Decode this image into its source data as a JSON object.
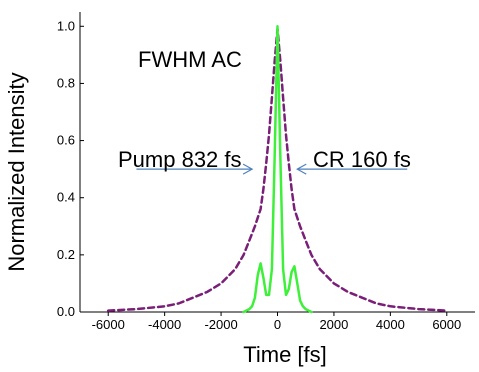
{
  "chart_data": {
    "type": "line",
    "title": "",
    "xlabel": "Time [fs]",
    "ylabel": "Normalized Intensity",
    "xlim": [
      -7000,
      7000
    ],
    "ylim": [
      0,
      1.05
    ],
    "xticks": [
      -6000,
      -4000,
      -2000,
      0,
      2000,
      4000,
      6000
    ],
    "xtick_labels": [
      "-6000",
      "-4000",
      "-2000",
      "0",
      "2000",
      "4000",
      "6000"
    ],
    "yticks": [
      0.0,
      0.2,
      0.4,
      0.6,
      0.8,
      1.0
    ],
    "ytick_labels": [
      "0.0",
      "0.2",
      "0.4",
      "0.6",
      "0.8",
      "1.0"
    ],
    "grid": false,
    "legend": "none",
    "annotations": {
      "heading": "FWHM AC",
      "left": "Pump 832 fs",
      "right": "CR 160 fs"
    },
    "series": [
      {
        "color": "#7a1f78",
        "dash": "dashed",
        "x": [
          -6000,
          -5000,
          -4000,
          -3500,
          -3000,
          -2500,
          -2000,
          -1500,
          -1200,
          -1000,
          -800,
          -600,
          -500,
          -400,
          -300,
          -200,
          -100,
          0,
          100,
          200,
          300,
          400,
          500,
          600,
          800,
          1000,
          1200,
          1500,
          2000,
          2500,
          3000,
          3500,
          4000,
          5000,
          6000
        ],
        "y": [
          0.005,
          0.01,
          0.02,
          0.03,
          0.05,
          0.07,
          0.1,
          0.15,
          0.2,
          0.25,
          0.3,
          0.36,
          0.43,
          0.52,
          0.62,
          0.75,
          0.88,
          0.99,
          0.88,
          0.75,
          0.62,
          0.52,
          0.43,
          0.36,
          0.3,
          0.25,
          0.2,
          0.15,
          0.1,
          0.07,
          0.05,
          0.03,
          0.02,
          0.01,
          0.005
        ]
      },
      {
        "color": "#3ef03a",
        "dash": "solid",
        "x": [
          -1200,
          -1000,
          -900,
          -800,
          -700,
          -600,
          -500,
          -400,
          -300,
          -200,
          -100,
          0,
          100,
          200,
          300,
          400,
          500,
          600,
          700,
          800,
          900,
          1000,
          1200
        ],
        "y": [
          0,
          0.01,
          0.02,
          0.05,
          0.13,
          0.17,
          0.12,
          0.06,
          0.06,
          0.15,
          0.55,
          1.0,
          0.55,
          0.15,
          0.06,
          0.08,
          0.14,
          0.16,
          0.1,
          0.04,
          0.02,
          0.01,
          0
        ]
      }
    ],
    "arrows": [
      {
        "from": [
          -5000,
          0.5
        ],
        "to": [
          -900,
          0.5
        ],
        "color": "#4f81bd"
      },
      {
        "from": [
          4600,
          0.5
        ],
        "to": [
          700,
          0.5
        ],
        "color": "#4f81bd"
      }
    ]
  }
}
